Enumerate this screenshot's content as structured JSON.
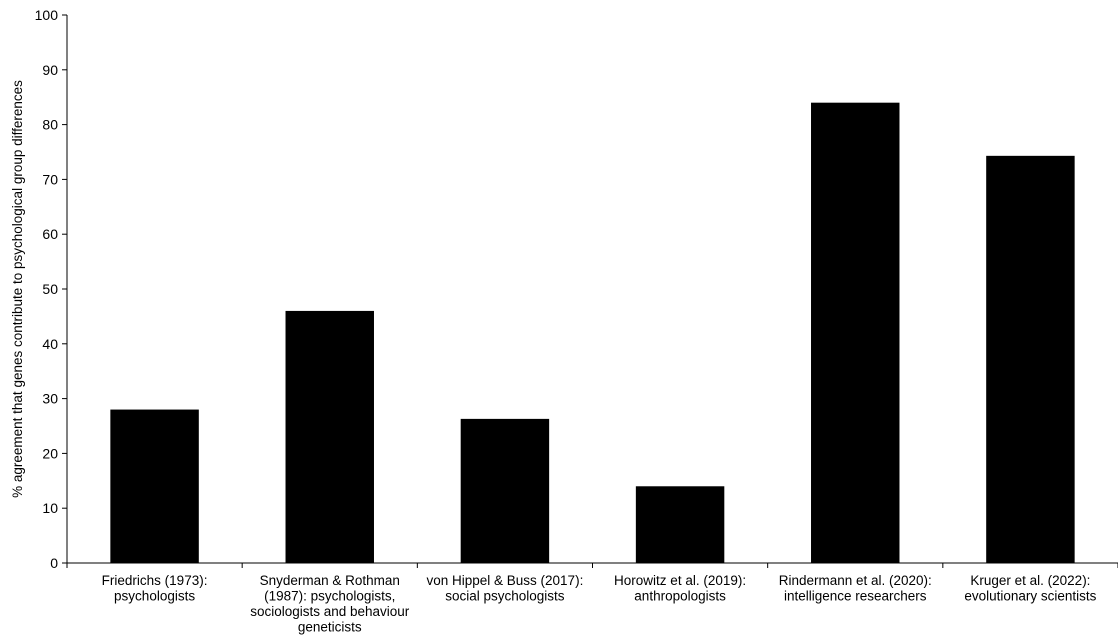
{
  "chart_data": {
    "type": "bar",
    "ylabel": "% agreement that genes contribute to psychological group differences",
    "xlabel": "",
    "ylim": [
      0,
      100
    ],
    "yticks": [
      "0",
      "10",
      "20",
      "30",
      "40",
      "50",
      "60",
      "70",
      "80",
      "90",
      "100"
    ],
    "grid": false,
    "bar_color": "#000000",
    "categories": [
      [
        "Friedrichs (1973):",
        "psychologists"
      ],
      [
        "Snyderman & Rothman",
        "(1987): psychologists,",
        "sociologists and behaviour",
        "geneticists"
      ],
      [
        "von Hippel & Buss (2017):",
        "social psychologists"
      ],
      [
        "Horowitz et al. (2019):",
        "anthropologists"
      ],
      [
        "Rindermann et al. (2020):",
        "intelligence researchers"
      ],
      [
        "Kruger et al. (2022):",
        "evolutionary scientists"
      ]
    ],
    "values": [
      28,
      46,
      26.3,
      14,
      84,
      74.3
    ]
  }
}
